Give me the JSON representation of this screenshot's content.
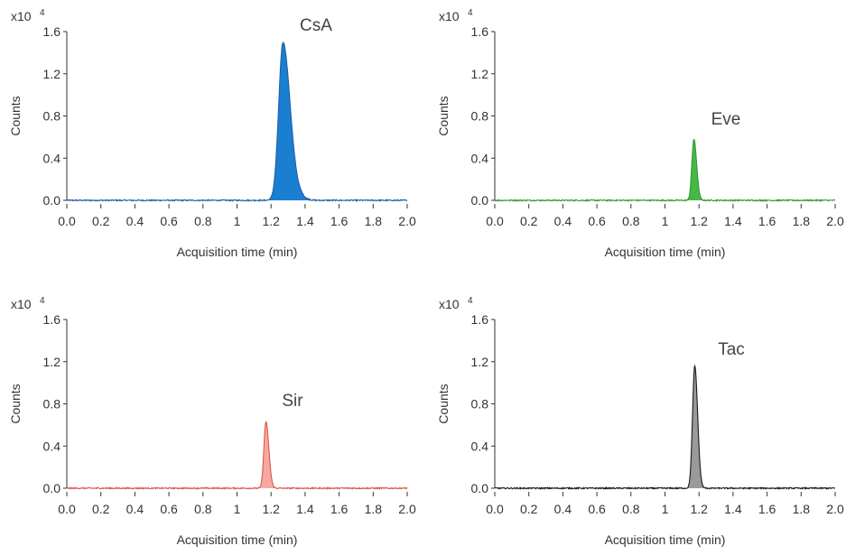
{
  "chart_data": [
    {
      "type": "line",
      "title": "",
      "annotation": "CsA",
      "xlabel": "Acquisition time (min)",
      "ylabel": "Counts",
      "y_multiplier": "x10",
      "y_exponent": "4",
      "xlim": [
        0.0,
        2.0
      ],
      "ylim": [
        0.0,
        1.6
      ],
      "xticks": [
        "0.0",
        "0.2",
        "0.4",
        "0.6",
        "0.8",
        "1",
        "1.2",
        "1.4",
        "1.6",
        "1.8",
        "2.0"
      ],
      "yticks": [
        "0.0",
        "0.4",
        "0.8",
        "1.2",
        "1.6"
      ],
      "color": "#1f5fa8",
      "fill": "#1a7fd0",
      "peak": {
        "center": 1.27,
        "height": 1.48,
        "width_left": 0.025,
        "width_right": 0.04
      },
      "shoulder": {
        "center": 1.34,
        "height": 0.08,
        "width": 0.04
      },
      "series": [
        {
          "x": [
            0.0,
            0.2,
            0.4,
            0.6,
            0.8,
            1.0,
            1.2,
            1.22,
            1.24,
            1.26,
            1.27,
            1.28,
            1.3,
            1.32,
            1.34,
            1.36,
            1.4,
            1.5,
            2.0
          ],
          "values": [
            0.0,
            0.0,
            0.0,
            0.0,
            0.0,
            0.0,
            0.01,
            0.15,
            0.62,
            1.3,
            1.48,
            1.38,
            0.85,
            0.4,
            0.16,
            0.07,
            0.02,
            0.0,
            0.0
          ]
        }
      ]
    },
    {
      "type": "line",
      "title": "",
      "annotation": "Eve",
      "xlabel": "Acquisition time (min)",
      "ylabel": "Counts",
      "y_multiplier": "x10",
      "y_exponent": "4",
      "xlim": [
        0.0,
        2.0
      ],
      "ylim": [
        0.0,
        1.6
      ],
      "xticks": [
        "0.0",
        "0.2",
        "0.4",
        "0.6",
        "0.8",
        "1",
        "1.2",
        "1.4",
        "1.6",
        "1.8",
        "2.0"
      ],
      "yticks": [
        "0.0",
        "0.4",
        "0.8",
        "1.2",
        "1.6"
      ],
      "color": "#2f9a2f",
      "fill": "#49b649",
      "peak": {
        "center": 1.17,
        "height": 0.58,
        "width_left": 0.012,
        "width_right": 0.016
      },
      "series": [
        {
          "x": [
            0.0,
            0.5,
            1.0,
            1.13,
            1.15,
            1.16,
            1.17,
            1.18,
            1.19,
            1.21,
            1.25,
            2.0
          ],
          "values": [
            0.0,
            0.0,
            0.0,
            0.01,
            0.2,
            0.45,
            0.58,
            0.48,
            0.27,
            0.04,
            0.0,
            0.0
          ]
        }
      ]
    },
    {
      "type": "line",
      "title": "",
      "annotation": "Sir",
      "xlabel": "Acquisition time (min)",
      "ylabel": "Counts",
      "y_multiplier": "x10",
      "y_exponent": "4",
      "xlim": [
        0.0,
        2.0
      ],
      "ylim": [
        0.0,
        1.6
      ],
      "xticks": [
        "0.0",
        "0.2",
        "0.4",
        "0.6",
        "0.8",
        "1",
        "1.2",
        "1.4",
        "1.6",
        "1.8",
        "2.0"
      ],
      "yticks": [
        "0.0",
        "0.4",
        "0.8",
        "1.2",
        "1.6"
      ],
      "color": "#e05546",
      "fill": "#f7a8a4",
      "peak": {
        "center": 1.17,
        "height": 0.63,
        "width_left": 0.012,
        "width_right": 0.017
      },
      "series": [
        {
          "x": [
            0.0,
            0.5,
            1.0,
            1.13,
            1.15,
            1.16,
            1.17,
            1.18,
            1.19,
            1.21,
            1.25,
            2.0
          ],
          "values": [
            0.0,
            0.0,
            0.0,
            0.01,
            0.22,
            0.5,
            0.63,
            0.52,
            0.3,
            0.05,
            0.0,
            0.0
          ]
        }
      ]
    },
    {
      "type": "line",
      "title": "",
      "annotation": "Tac",
      "xlabel": "Acquisition time (min)",
      "ylabel": "Counts",
      "y_multiplier": "x10",
      "y_exponent": "4",
      "xlim": [
        0.0,
        2.0
      ],
      "ylim": [
        0.0,
        1.6
      ],
      "xticks": [
        "0.0",
        "0.2",
        "0.4",
        "0.6",
        "0.8",
        "1",
        "1.2",
        "1.4",
        "1.6",
        "1.8",
        "2.0"
      ],
      "yticks": [
        "0.0",
        "0.4",
        "0.8",
        "1.2",
        "1.6"
      ],
      "color": "#1a1a1a",
      "fill": "#9a9a9a",
      "peak": {
        "center": 1.175,
        "height": 1.16,
        "width_left": 0.013,
        "width_right": 0.017
      },
      "series": [
        {
          "x": [
            0.0,
            0.5,
            1.0,
            1.13,
            1.15,
            1.165,
            1.175,
            1.185,
            1.2,
            1.22,
            1.26,
            2.0
          ],
          "values": [
            0.0,
            0.0,
            0.0,
            0.01,
            0.3,
            0.95,
            1.16,
            0.98,
            0.45,
            0.06,
            0.0,
            0.0
          ]
        }
      ]
    }
  ]
}
